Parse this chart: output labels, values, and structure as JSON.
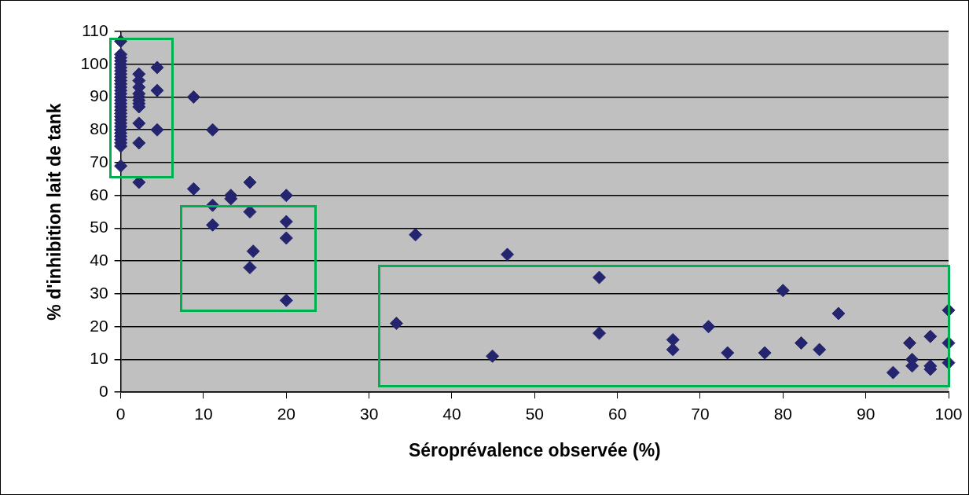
{
  "chart_data": {
    "type": "scatter",
    "xlabel": "Séroprévalence observée (%)",
    "ylabel": "% d'inhibition lait de tank",
    "x": [
      0,
      0,
      0,
      0,
      0,
      0,
      0,
      0,
      0,
      0,
      0,
      0,
      0,
      0,
      0,
      0,
      0,
      0,
      0,
      0,
      0,
      0,
      0,
      0,
      0,
      0,
      0,
      0,
      0,
      0,
      0,
      2.2,
      2.2,
      2.2,
      2.2,
      2.2,
      2.2,
      2.2,
      2.2,
      2.2,
      2.2,
      2.2,
      4.4,
      4.4,
      4.4,
      8.8,
      8.8,
      11.1,
      11.1,
      11.1,
      13.3,
      13.3,
      15.6,
      15.6,
      15.6,
      16,
      20,
      20,
      20,
      20,
      33.3,
      35.6,
      44.9,
      46.7,
      57.8,
      57.8,
      66.7,
      66.7,
      71,
      73.3,
      77.8,
      80,
      82.2,
      84.4,
      86.7,
      93.3,
      95.3,
      95.6,
      95.6,
      97.8,
      97.8,
      97.8,
      100,
      100,
      100
    ],
    "values": [
      107,
      103,
      102,
      101,
      100,
      99,
      98,
      97,
      96,
      95,
      94,
      93,
      92,
      91,
      90,
      89,
      88,
      87,
      86,
      85,
      84,
      83,
      82,
      81,
      80,
      79,
      78,
      77,
      76,
      75,
      69,
      97,
      95,
      93,
      91,
      90,
      89,
      88,
      87,
      82,
      76,
      64,
      99,
      92,
      80,
      90,
      62,
      80,
      57,
      51,
      60,
      59,
      64,
      55,
      38,
      43,
      60,
      52,
      47,
      28,
      21,
      48,
      11,
      42,
      35,
      18,
      16,
      13,
      20,
      12,
      12,
      31,
      15,
      13,
      24,
      6,
      15,
      10,
      8,
      17,
      8,
      7,
      25,
      15,
      9
    ],
    "color": "#24246f",
    "marker": "diamond",
    "xlim": [
      0,
      100
    ],
    "xticks": [
      0,
      10,
      20,
      30,
      40,
      50,
      60,
      70,
      80,
      90,
      100
    ],
    "ylim": [
      0,
      110
    ],
    "yticks": [
      0,
      10,
      20,
      30,
      40,
      50,
      60,
      70,
      80,
      90,
      100,
      110
    ],
    "grid": "y"
  }
}
